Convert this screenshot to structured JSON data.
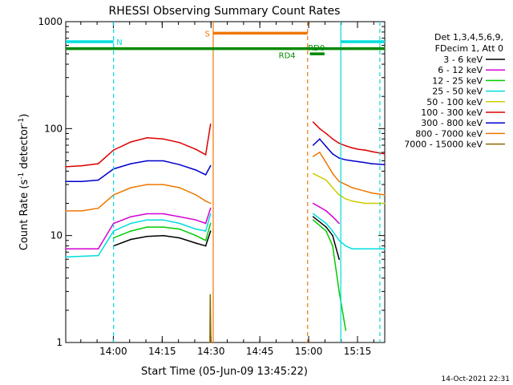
{
  "chart_data": {
    "type": "line",
    "title": "RHESSI Observing Summary Count Rates",
    "xlabel": "Start Time (05-Jun-09 13:45:22)",
    "ylabel_main": "Count Rate (s",
    "ylabel_sup1": "-1",
    "ylabel_mid": " detector",
    "ylabel_sup2": "-1",
    "ylabel_end": ")",
    "y_scale": "log",
    "ylim": [
      1,
      1000
    ],
    "xlim_minutes": [
      0,
      98
    ],
    "x_ticks": [
      {
        "label": "14:00",
        "minute": 14.63
      },
      {
        "label": "14:15",
        "minute": 29.63
      },
      {
        "label": "14:30",
        "minute": 44.63
      },
      {
        "label": "14:45",
        "minute": 59.63
      },
      {
        "label": "15:00",
        "minute": 74.63
      },
      {
        "label": "15:15",
        "minute": 89.63
      }
    ],
    "y_ticks": [
      {
        "label": "1",
        "value": 1
      },
      {
        "label": "10",
        "value": 10
      },
      {
        "label": "100",
        "value": 100
      },
      {
        "label": "1000",
        "value": 1000
      }
    ],
    "legend_header": [
      "Det 1,3,4,5,6,9,",
      "FDecim 1, Att 0"
    ],
    "legend_position": "right",
    "timestamp": "14-Oct-2021 22:31",
    "gap_minutes": [
      45,
      74.5
    ],
    "series": [
      {
        "name": "3 - 6 keV",
        "color": "#000000",
        "values": [
          [
            14.7,
            8.0
          ],
          [
            20,
            9.2
          ],
          [
            25,
            9.8
          ],
          [
            30,
            10
          ],
          [
            35,
            9.5
          ],
          [
            40,
            8.5
          ],
          [
            43,
            8.0
          ],
          [
            44.5,
            11
          ],
          [
            76,
            15
          ],
          [
            80,
            12
          ],
          [
            82,
            10
          ],
          [
            84,
            6
          ]
        ]
      },
      {
        "name": "6 - 12 keV",
        "color": "#d400d4",
        "values": [
          [
            0,
            7.5
          ],
          [
            10,
            7.5
          ],
          [
            14.7,
            13
          ],
          [
            20,
            15
          ],
          [
            25,
            16
          ],
          [
            30,
            16
          ],
          [
            35,
            15
          ],
          [
            40,
            14
          ],
          [
            43,
            13
          ],
          [
            44.5,
            18
          ],
          [
            76,
            20
          ],
          [
            80,
            17
          ],
          [
            82,
            15
          ],
          [
            84,
            13
          ]
        ]
      },
      {
        "name": "12 - 25 keV",
        "color": "#00cc00",
        "values": [
          [
            14.7,
            9.5
          ],
          [
            20,
            11
          ],
          [
            25,
            12
          ],
          [
            30,
            12
          ],
          [
            35,
            11.5
          ],
          [
            40,
            10
          ],
          [
            43,
            9
          ],
          [
            44.5,
            13
          ],
          [
            76,
            14
          ],
          [
            80,
            11
          ],
          [
            82,
            8
          ],
          [
            84,
            3
          ],
          [
            86,
            1.3
          ]
        ]
      },
      {
        "name": "25 - 50 keV",
        "color": "#00dddd",
        "values": [
          [
            0,
            6.3
          ],
          [
            10,
            6.5
          ],
          [
            14.7,
            11
          ],
          [
            20,
            13
          ],
          [
            25,
            14
          ],
          [
            30,
            14
          ],
          [
            35,
            13
          ],
          [
            40,
            11.5
          ],
          [
            43,
            11
          ],
          [
            44.5,
            16
          ],
          [
            76,
            16
          ],
          [
            80,
            13
          ],
          [
            82,
            11
          ],
          [
            84,
            9
          ],
          [
            86,
            8
          ],
          [
            88,
            7.5
          ],
          [
            90,
            7.5
          ],
          [
            92,
            7.5
          ],
          [
            94,
            7.5
          ],
          [
            98,
            7.5
          ]
        ]
      },
      {
        "name": "50 - 100 keV",
        "color": "#cccc00",
        "values": [
          [
            76,
            38
          ],
          [
            80,
            33
          ],
          [
            82,
            28
          ],
          [
            84,
            24
          ],
          [
            86,
            22
          ],
          [
            88,
            21
          ],
          [
            90,
            20.5
          ],
          [
            92,
            20
          ],
          [
            95,
            20
          ],
          [
            98,
            20
          ]
        ]
      },
      {
        "name": "100 - 300 keV",
        "color": "#dd0000",
        "values": [
          [
            0,
            44
          ],
          [
            5,
            45
          ],
          [
            10,
            47
          ],
          [
            14.7,
            63
          ],
          [
            20,
            75
          ],
          [
            25,
            82
          ],
          [
            30,
            80
          ],
          [
            35,
            74
          ],
          [
            40,
            64
          ],
          [
            43,
            57
          ],
          [
            44.5,
            110
          ],
          [
            76,
            115
          ],
          [
            78,
            100
          ],
          [
            80,
            90
          ],
          [
            82,
            80
          ],
          [
            84,
            73
          ],
          [
            86,
            69
          ],
          [
            88,
            66
          ],
          [
            90,
            64
          ],
          [
            92,
            63
          ],
          [
            94,
            61
          ],
          [
            98,
            58
          ]
        ]
      },
      {
        "name": "300 - 800 keV",
        "color": "#0000cc",
        "values": [
          [
            0,
            32
          ],
          [
            5,
            32
          ],
          [
            10,
            33
          ],
          [
            14.7,
            42
          ],
          [
            20,
            47
          ],
          [
            25,
            50
          ],
          [
            30,
            50
          ],
          [
            35,
            46
          ],
          [
            40,
            41
          ],
          [
            43,
            37
          ],
          [
            44.5,
            45
          ],
          [
            76,
            70
          ],
          [
            78,
            80
          ],
          [
            80,
            68
          ],
          [
            82,
            58
          ],
          [
            84,
            53
          ],
          [
            86,
            51
          ],
          [
            88,
            50
          ],
          [
            90,
            49
          ],
          [
            92,
            48
          ],
          [
            94,
            47
          ],
          [
            98,
            46
          ]
        ]
      },
      {
        "name": "800 - 7000 keV",
        "color": "#ee7700",
        "values": [
          [
            0,
            17
          ],
          [
            5,
            17
          ],
          [
            10,
            18
          ],
          [
            14.7,
            24
          ],
          [
            20,
            28
          ],
          [
            25,
            30
          ],
          [
            30,
            30
          ],
          [
            35,
            28
          ],
          [
            40,
            24
          ],
          [
            43,
            21
          ],
          [
            44.5,
            20
          ],
          [
            76,
            55
          ],
          [
            78,
            60
          ],
          [
            80,
            48
          ],
          [
            82,
            38
          ],
          [
            84,
            32
          ],
          [
            86,
            30
          ],
          [
            88,
            28
          ],
          [
            90,
            27
          ],
          [
            92,
            26
          ],
          [
            94,
            25
          ],
          [
            98,
            24
          ]
        ]
      },
      {
        "name": "7000 - 15000 keV",
        "color": "#886600",
        "values": [
          [
            44.3,
            1.0
          ],
          [
            44.4,
            2.8
          ],
          [
            44.6,
            1.0
          ]
        ]
      }
    ],
    "annotations": [
      {
        "label": "N",
        "color": "#00dddd",
        "kind": "bar",
        "y": 650,
        "x_start": 0,
        "x_end": 14.7,
        "vline_minute": 14.7,
        "vline_dashed": true,
        "label_minute": 16.5
      },
      {
        "label": "",
        "color": "#00dddd",
        "kind": "bar",
        "y": 650,
        "x_start": 84.5,
        "x_end": 98,
        "vline_minute": 84.5,
        "vline_dashed": false
      },
      {
        "label": "",
        "color": "#00dddd",
        "kind": "vline",
        "vline_minute": 96.5,
        "vline_dashed": true
      },
      {
        "label": "S",
        "color": "#ee7700",
        "kind": "bar",
        "y": 780,
        "x_start": 45.3,
        "x_end": 74.3,
        "vline_minute": 45.3,
        "vline_dashed": false,
        "label_minute": 43.5
      },
      {
        "label": "",
        "color": "#ee7700",
        "kind": "vline",
        "vline_minute": 74.3,
        "vline_dashed": true
      },
      {
        "label": "",
        "color": "#008800",
        "kind": "bar",
        "y": 560,
        "x_start": 0,
        "x_end": 98
      },
      {
        "label": "RD4",
        "color": "#008800",
        "kind": "text",
        "y": 490,
        "label_minute": 68
      },
      {
        "label": "RD0",
        "color": "#008800",
        "kind": "bar",
        "y": 500,
        "x_start": 75,
        "x_end": 79.5,
        "label_minute": 77
      }
    ]
  }
}
